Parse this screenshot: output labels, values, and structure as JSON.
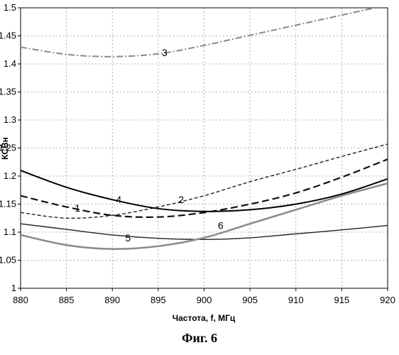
{
  "chart_data": {
    "type": "line",
    "xlabel": "Частота, f, МГц",
    "ylabel": "КСВн",
    "xlim": [
      880,
      920
    ],
    "ylim": [
      1,
      1.5
    ],
    "x_ticks": [
      "880",
      "885",
      "890",
      "895",
      "900",
      "905",
      "910",
      "915",
      "920"
    ],
    "y_ticks": [
      "1",
      "1.05",
      "1.1",
      "1.15",
      "1.2",
      "1.25",
      "1.3",
      "1.35",
      "1.4",
      "1.45",
      "1.5"
    ],
    "grid": "dashed",
    "x": [
      880,
      885,
      890,
      895,
      900,
      905,
      910,
      915,
      920
    ],
    "series": [
      {
        "name": "1",
        "style": "long-dash",
        "color": "#111111",
        "values": [
          1.165,
          1.145,
          1.13,
          1.127,
          1.135,
          1.15,
          1.17,
          1.198,
          1.23
        ]
      },
      {
        "name": "2",
        "style": "short-dash",
        "color": "#222222",
        "values": [
          1.135,
          1.125,
          1.13,
          1.145,
          1.165,
          1.19,
          1.212,
          1.235,
          1.257
        ]
      },
      {
        "name": "3",
        "style": "dash-dot",
        "color": "#8a8a8a",
        "values": [
          1.43,
          1.417,
          1.413,
          1.418,
          1.433,
          1.451,
          1.469,
          1.487,
          1.505
        ]
      },
      {
        "name": "4",
        "style": "solid",
        "color": "#000000",
        "values": [
          1.21,
          1.18,
          1.158,
          1.142,
          1.137,
          1.14,
          1.15,
          1.168,
          1.195
        ]
      },
      {
        "name": "5",
        "style": "solid-thin",
        "color": "#222222",
        "values": [
          1.115,
          1.105,
          1.095,
          1.089,
          1.087,
          1.09,
          1.097,
          1.104,
          1.112
        ]
      },
      {
        "name": "6",
        "style": "solid-gray",
        "color": "#8c8c8c",
        "values": [
          1.095,
          1.077,
          1.07,
          1.075,
          1.09,
          1.115,
          1.14,
          1.165,
          1.187
        ]
      }
    ],
    "labels": [
      {
        "text": "1",
        "x": 886.2,
        "y": 1.143
      },
      {
        "text": "2",
        "x": 897.5,
        "y": 1.158
      },
      {
        "text": "3",
        "x": 895.7,
        "y": 1.42
      },
      {
        "text": "4",
        "x": 890.7,
        "y": 1.158
      },
      {
        "text": "5",
        "x": 891.7,
        "y": 1.09
      },
      {
        "text": "6",
        "x": 901.8,
        "y": 1.112
      }
    ]
  },
  "caption": "Фиг. 6"
}
